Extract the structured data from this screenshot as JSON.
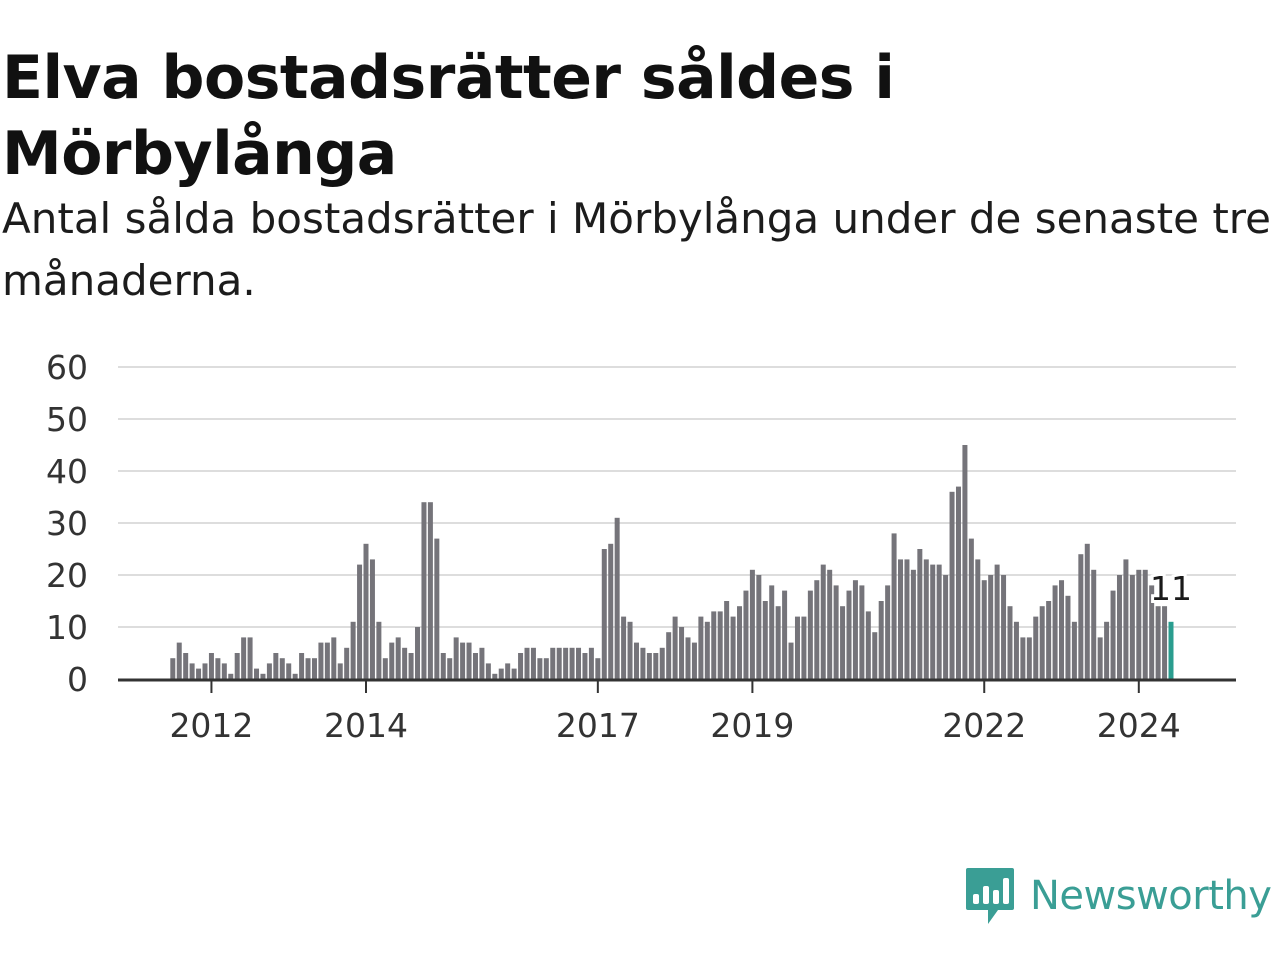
{
  "title": "Elva bostadsrätter såldes i Mörbylånga",
  "subtitle": "Antal sålda bostadsrätter i Mörbylånga under de senaste tre månaderna.",
  "brand": {
    "name": "Newsworthy",
    "color": "#3a9e95",
    "icon": "newsworthy-logo-icon"
  },
  "colors": {
    "bar": "#75747a",
    "highlight": "#2a9d8f",
    "grid": "#dddddd",
    "axis": "#333333"
  },
  "chart_data": {
    "type": "bar",
    "x_axis": "months, 2011-07 to 2024-12",
    "y_ticks": [
      "0",
      "10",
      "20",
      "30",
      "40",
      "50",
      "60"
    ],
    "x_ticks": [
      "2012",
      "2014",
      "2017",
      "2019",
      "2022",
      "2024"
    ],
    "ylim": [
      0,
      60
    ],
    "grid": true,
    "start": "2011-07",
    "values": [
      4,
      7,
      5,
      3,
      2,
      3,
      5,
      4,
      3,
      1,
      5,
      8,
      8,
      2,
      1,
      3,
      5,
      4,
      3,
      1,
      5,
      4,
      4,
      7,
      7,
      8,
      3,
      6,
      11,
      22,
      26,
      23,
      11,
      4,
      7,
      8,
      6,
      5,
      10,
      34,
      34,
      27,
      5,
      4,
      8,
      7,
      7,
      5,
      6,
      3,
      1,
      2,
      3,
      2,
      5,
      6,
      6,
      4,
      4,
      6,
      6,
      6,
      6,
      6,
      5,
      6,
      4,
      25,
      26,
      31,
      12,
      11,
      7,
      6,
      5,
      5,
      6,
      9,
      12,
      10,
      8,
      7,
      12,
      11,
      13,
      13,
      15,
      12,
      14,
      17,
      21,
      20,
      15,
      18,
      14,
      17,
      7,
      12,
      12,
      17,
      19,
      22,
      21,
      18,
      14,
      17,
      19,
      18,
      13,
      9,
      15,
      18,
      28,
      23,
      23,
      21,
      25,
      23,
      22,
      22,
      20,
      36,
      37,
      45,
      27,
      23,
      19,
      20,
      22,
      20,
      14,
      11,
      8,
      8,
      12,
      14,
      15,
      18,
      19,
      16,
      11,
      24,
      26,
      21,
      8,
      11,
      17,
      20,
      23,
      20,
      21,
      21,
      18,
      14,
      14,
      11
    ],
    "highlight_last": 1,
    "annotation": "11"
  }
}
